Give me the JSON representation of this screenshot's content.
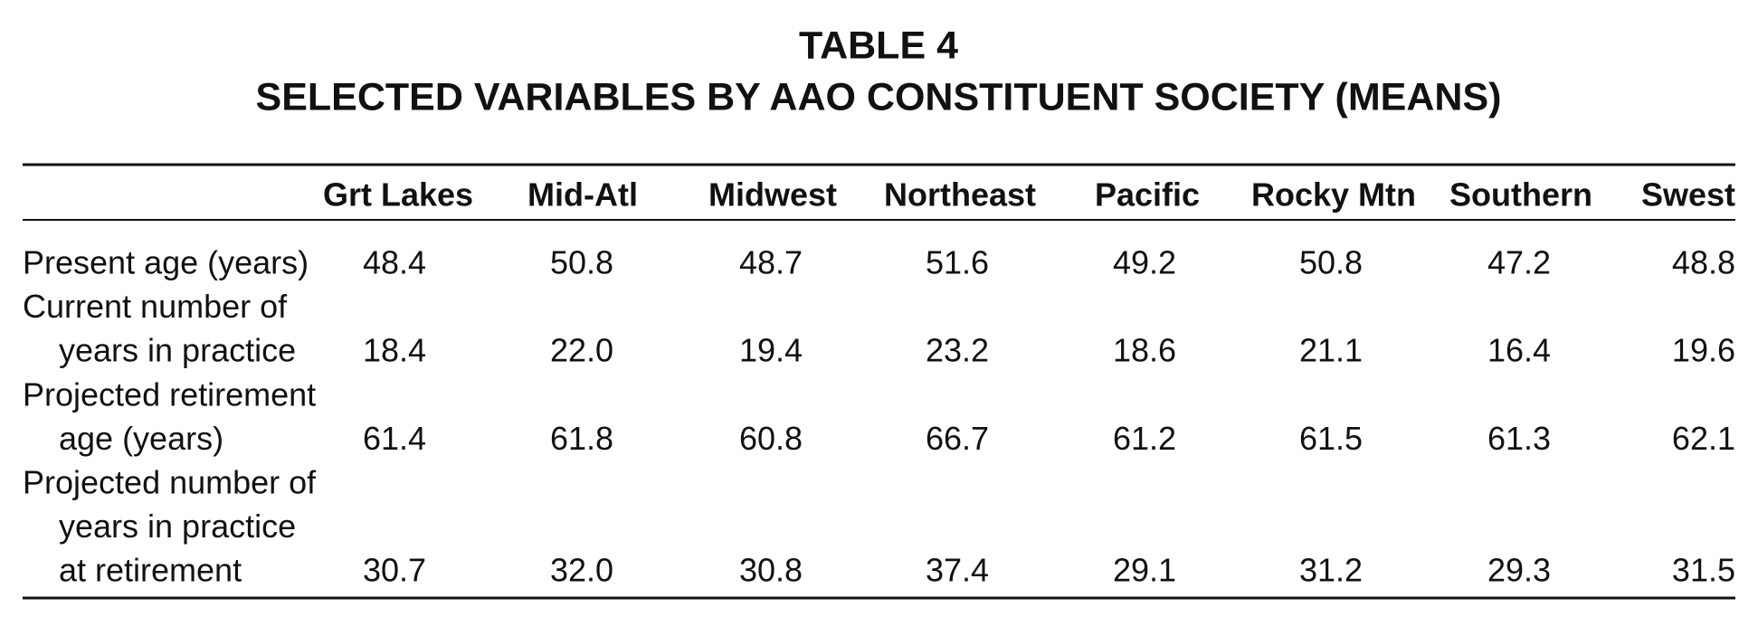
{
  "title": [
    "TABLE 4",
    "SELECTED VARIABLES BY AAO CONSTITUENT SOCIETY (MEANS)"
  ],
  "table": {
    "columns": [
      "Grt Lakes",
      "Mid-Atl",
      "Midwest",
      "Northeast",
      "Pacific",
      "Rocky Mtn",
      "Southern",
      "Swest"
    ],
    "rows": [
      {
        "label": [
          "Present age (years)"
        ],
        "values": [
          "48.4",
          "50.8",
          "48.7",
          "51.6",
          "49.2",
          "50.8",
          "47.2",
          "48.8"
        ]
      },
      {
        "label": [
          "Current number of",
          "years in practice"
        ],
        "values": [
          "18.4",
          "22.0",
          "19.4",
          "23.2",
          "18.6",
          "21.1",
          "16.4",
          "19.6"
        ]
      },
      {
        "label": [
          "Projected retirement",
          "age (years)"
        ],
        "values": [
          "61.4",
          "61.8",
          "60.8",
          "66.7",
          "61.2",
          "61.5",
          "61.3",
          "62.1"
        ]
      },
      {
        "label": [
          "Projected number of",
          "years in practice",
          "at retirement"
        ],
        "values": [
          "30.7",
          "32.0",
          "30.8",
          "37.4",
          "29.1",
          "31.2",
          "29.3",
          "31.5"
        ]
      }
    ]
  }
}
